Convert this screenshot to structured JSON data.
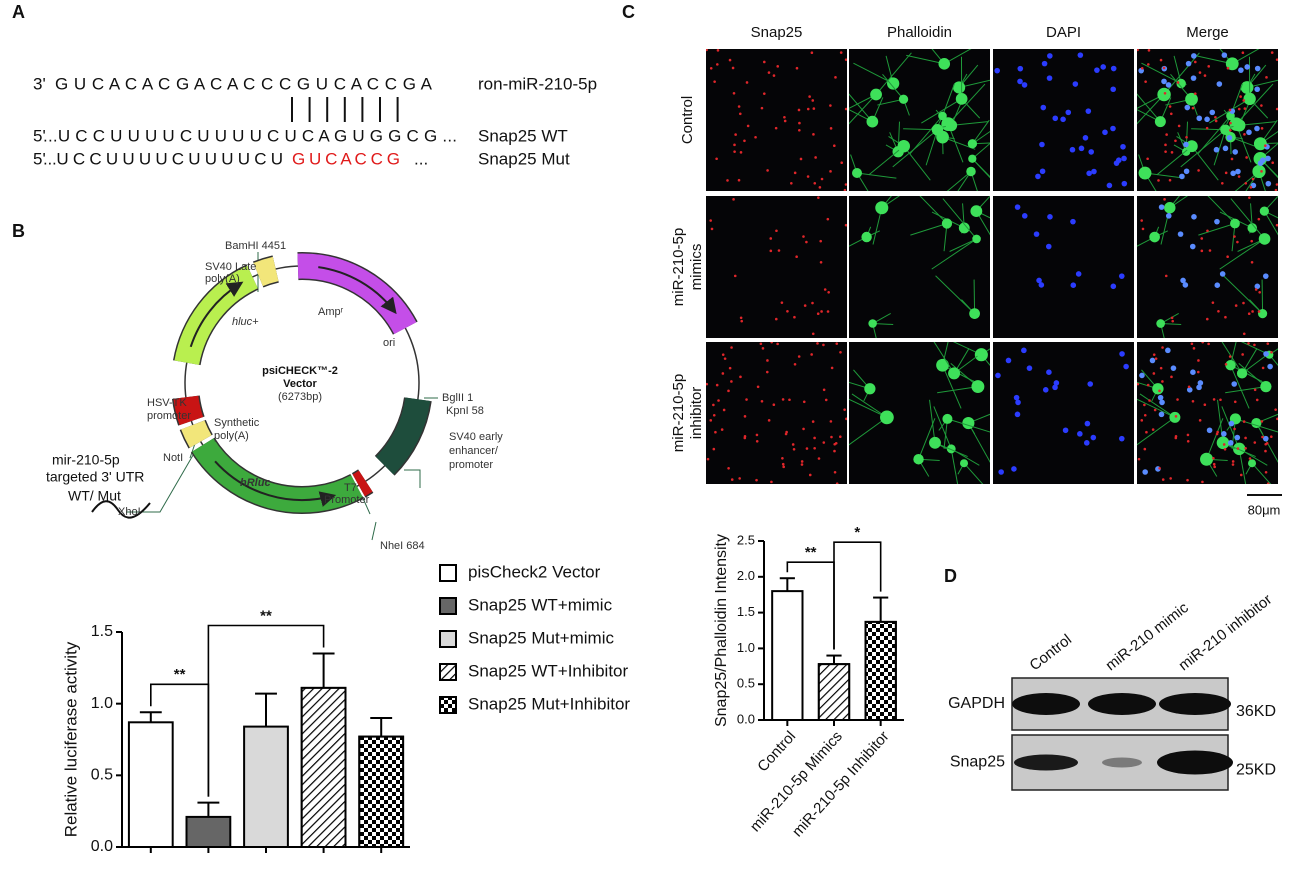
{
  "panel_labels": {
    "a": "A",
    "b": "B",
    "c": "C",
    "d": "D"
  },
  "sequence": {
    "mirna": {
      "end": "3'",
      "sequence": "G U C A C A C G A C A C C C G U C A C C G A",
      "name": "ron-miR-210-5p"
    },
    "wt": {
      "end": "5'",
      "sequence": "...U C C U U U U C U U U U C U C A G U G G C G ...",
      "name": "Snap25 WT"
    },
    "mut": {
      "end": "5'",
      "sequence": "...U C C U U U U C U U U U C U",
      "mutated": "G U C A C C G",
      "tail": "...",
      "name": "Snap25 Mut"
    }
  },
  "plasmid": {
    "title": [
      "psiCHECK™-2",
      "Vector"
    ],
    "size": "(6273bp)",
    "labels": [
      "BamHI 4451",
      "SV40 Late",
      "poly(A)",
      "Ampʳ",
      "hluc+",
      "ori",
      "HSV-TK",
      "promoter",
      "Synthetic",
      "poly(A)",
      "NotI",
      "XhoI",
      "hRluc",
      "T7",
      "Promoter",
      "NheI 684",
      "BglII 1",
      "KpnI 58",
      "SV40 early",
      "enhancer/",
      "promoter",
      "mir-210-5p",
      "targeted 3' UTR",
      "WT/ Mut"
    ]
  },
  "microscopy": {
    "columns": [
      "Snap25",
      "Phalloidin",
      "DAPI",
      "Merge"
    ],
    "rows": [
      [
        "Control"
      ],
      [
        "miR-210-5p",
        "mimics"
      ],
      [
        "miR-210-5p",
        "inhibitor"
      ]
    ],
    "scale_bar": "80μm"
  },
  "blot": {
    "lanes": [
      "Control",
      "miR-210 mimic",
      "miR-210 inhibitor"
    ],
    "rows": [
      {
        "protein": "GAPDH",
        "size": "36KD"
      },
      {
        "protein": "Snap25",
        "size": "25KD"
      }
    ]
  },
  "chart_data": [
    {
      "type": "bar",
      "y_label": "Relative luciferase activity",
      "categories": [
        "pisCheck2 Vector",
        "Snap25 WT+mimic",
        "Snap25 Mut+mimic",
        "Snap25 WT+Inhibitor",
        "Snap25 Mut+Inhibitor"
      ],
      "values": [
        0.87,
        0.21,
        0.84,
        1.11,
        0.77
      ],
      "errors": [
        0.07,
        0.1,
        0.23,
        0.24,
        0.13
      ],
      "colors": [
        "#ffffff",
        "#666666",
        "#d9d9d9",
        "#ffffff",
        "#ffffff"
      ],
      "patterns": [
        "solid",
        "solid",
        "solid",
        "hatch",
        "check"
      ],
      "ylim": [
        0,
        1.5
      ],
      "yticks": [
        {
          "value": 0,
          "label": "0.0"
        },
        0.5,
        {
          "value": 1,
          "label": "1.0"
        },
        1.5
      ],
      "legend": "right",
      "annotations": [
        {
          "pair": [
            0,
            1
          ],
          "label": "**"
        },
        {
          "pair": [
            1,
            3
          ],
          "label": "**"
        }
      ]
    },
    {
      "type": "bar",
      "y_label": "Snap25/Phalloidin Intensity",
      "categories": [
        "Control",
        "miR-210-5p Mimics",
        "miR-210-5p Inhibitor"
      ],
      "values": [
        1.8,
        0.78,
        1.37
      ],
      "errors": [
        0.18,
        0.12,
        0.34
      ],
      "colors": [
        "#ffffff",
        "#ffffff",
        "#ffffff"
      ],
      "patterns": [
        "solid",
        "hatch",
        "check"
      ],
      "ylim": [
        0,
        2.5
      ],
      "yticks": [
        {
          "value": 0,
          "label": "0.0"
        },
        0.5,
        {
          "value": 1,
          "label": "1.0"
        },
        1.5,
        {
          "value": 2,
          "label": "2.0"
        },
        2.5
      ],
      "annotations": [
        {
          "pair": [
            0,
            1
          ],
          "label": "**"
        },
        {
          "pair": [
            1,
            2
          ],
          "label": "*"
        }
      ]
    }
  ]
}
